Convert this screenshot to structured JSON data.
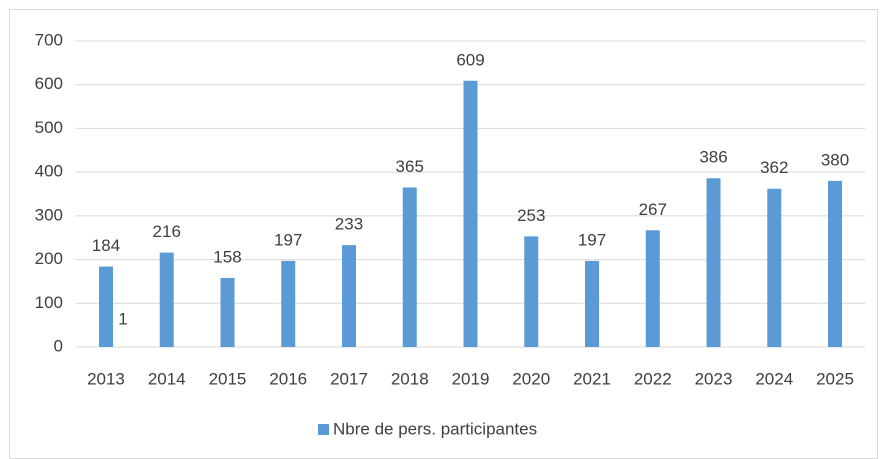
{
  "chart_data": {
    "type": "bar",
    "categories": [
      "2013",
      "2014",
      "2015",
      "2016",
      "2017",
      "2018",
      "2019",
      "2020",
      "2021",
      "2022",
      "2023",
      "2024",
      "2025"
    ],
    "series": [
      {
        "name": "Nbre de pers. participantes",
        "color": "#5b9bd5",
        "values": [
          184,
          216,
          158,
          197,
          233,
          365,
          609,
          253,
          197,
          267,
          386,
          362,
          380
        ]
      }
    ],
    "annotations": [
      "1"
    ],
    "ylim": [
      0,
      700
    ],
    "yticks": [
      0,
      100,
      200,
      300,
      400,
      500,
      600,
      700
    ],
    "grid": true,
    "legend": "bottom"
  }
}
